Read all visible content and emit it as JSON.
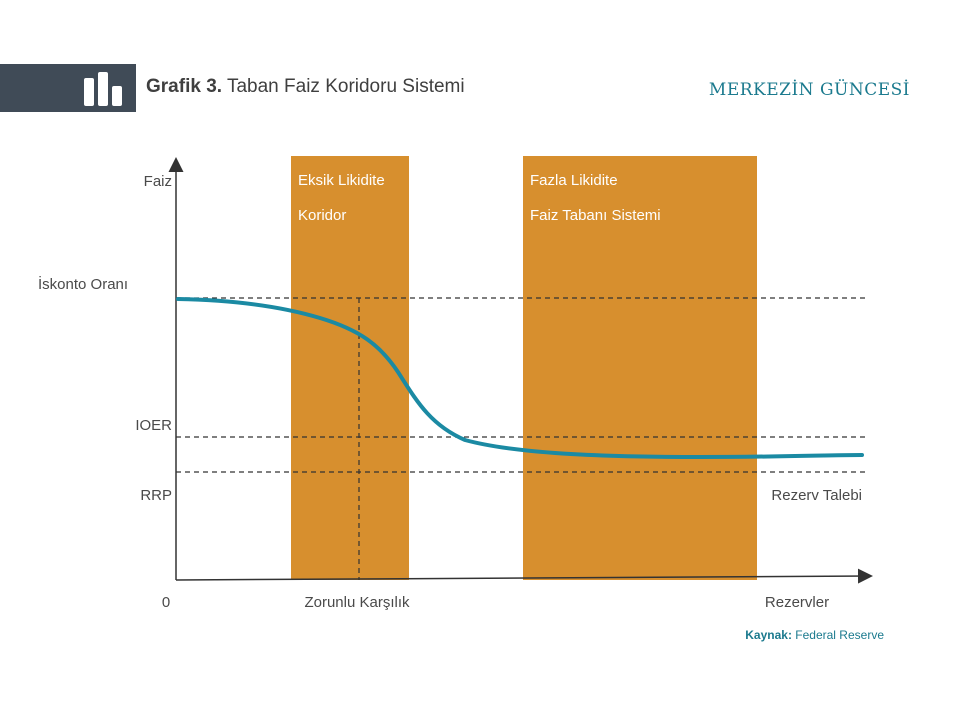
{
  "header": {
    "title_strong": "Grafik 3.",
    "title_text": "Taban Faiz Koridoru Sistemi",
    "brand": "MERKEZİN GÜNCESİ",
    "logo_icon": "bar-chart-icon"
  },
  "diagram": {
    "y_axis_label": "Faiz",
    "x_axis_label": "Rezervler",
    "origin_label": "0",
    "rate_levels": {
      "discount_rate": "İskonto Oranı",
      "ioer": "IOER",
      "rrp": "RRP"
    },
    "bands": {
      "shortage": {
        "line1": "Eksik Likidite",
        "line2": "Koridor"
      },
      "excess": {
        "line1": "Fazla Likidite",
        "line2": "Faiz Tabanı Sistemi"
      }
    },
    "required_reserves_label": "Zorunlu Karşılık",
    "curve_label": "Rezerv Talebi",
    "colors": {
      "band": "#d78f2e",
      "curve": "#1b8aa3",
      "axis": "#333333",
      "dashed": "#333333",
      "header_band": "#404b57",
      "brand": "#1b7a8e"
    }
  },
  "source": {
    "label": "Kaynak:",
    "text": "Federal Reserve"
  }
}
